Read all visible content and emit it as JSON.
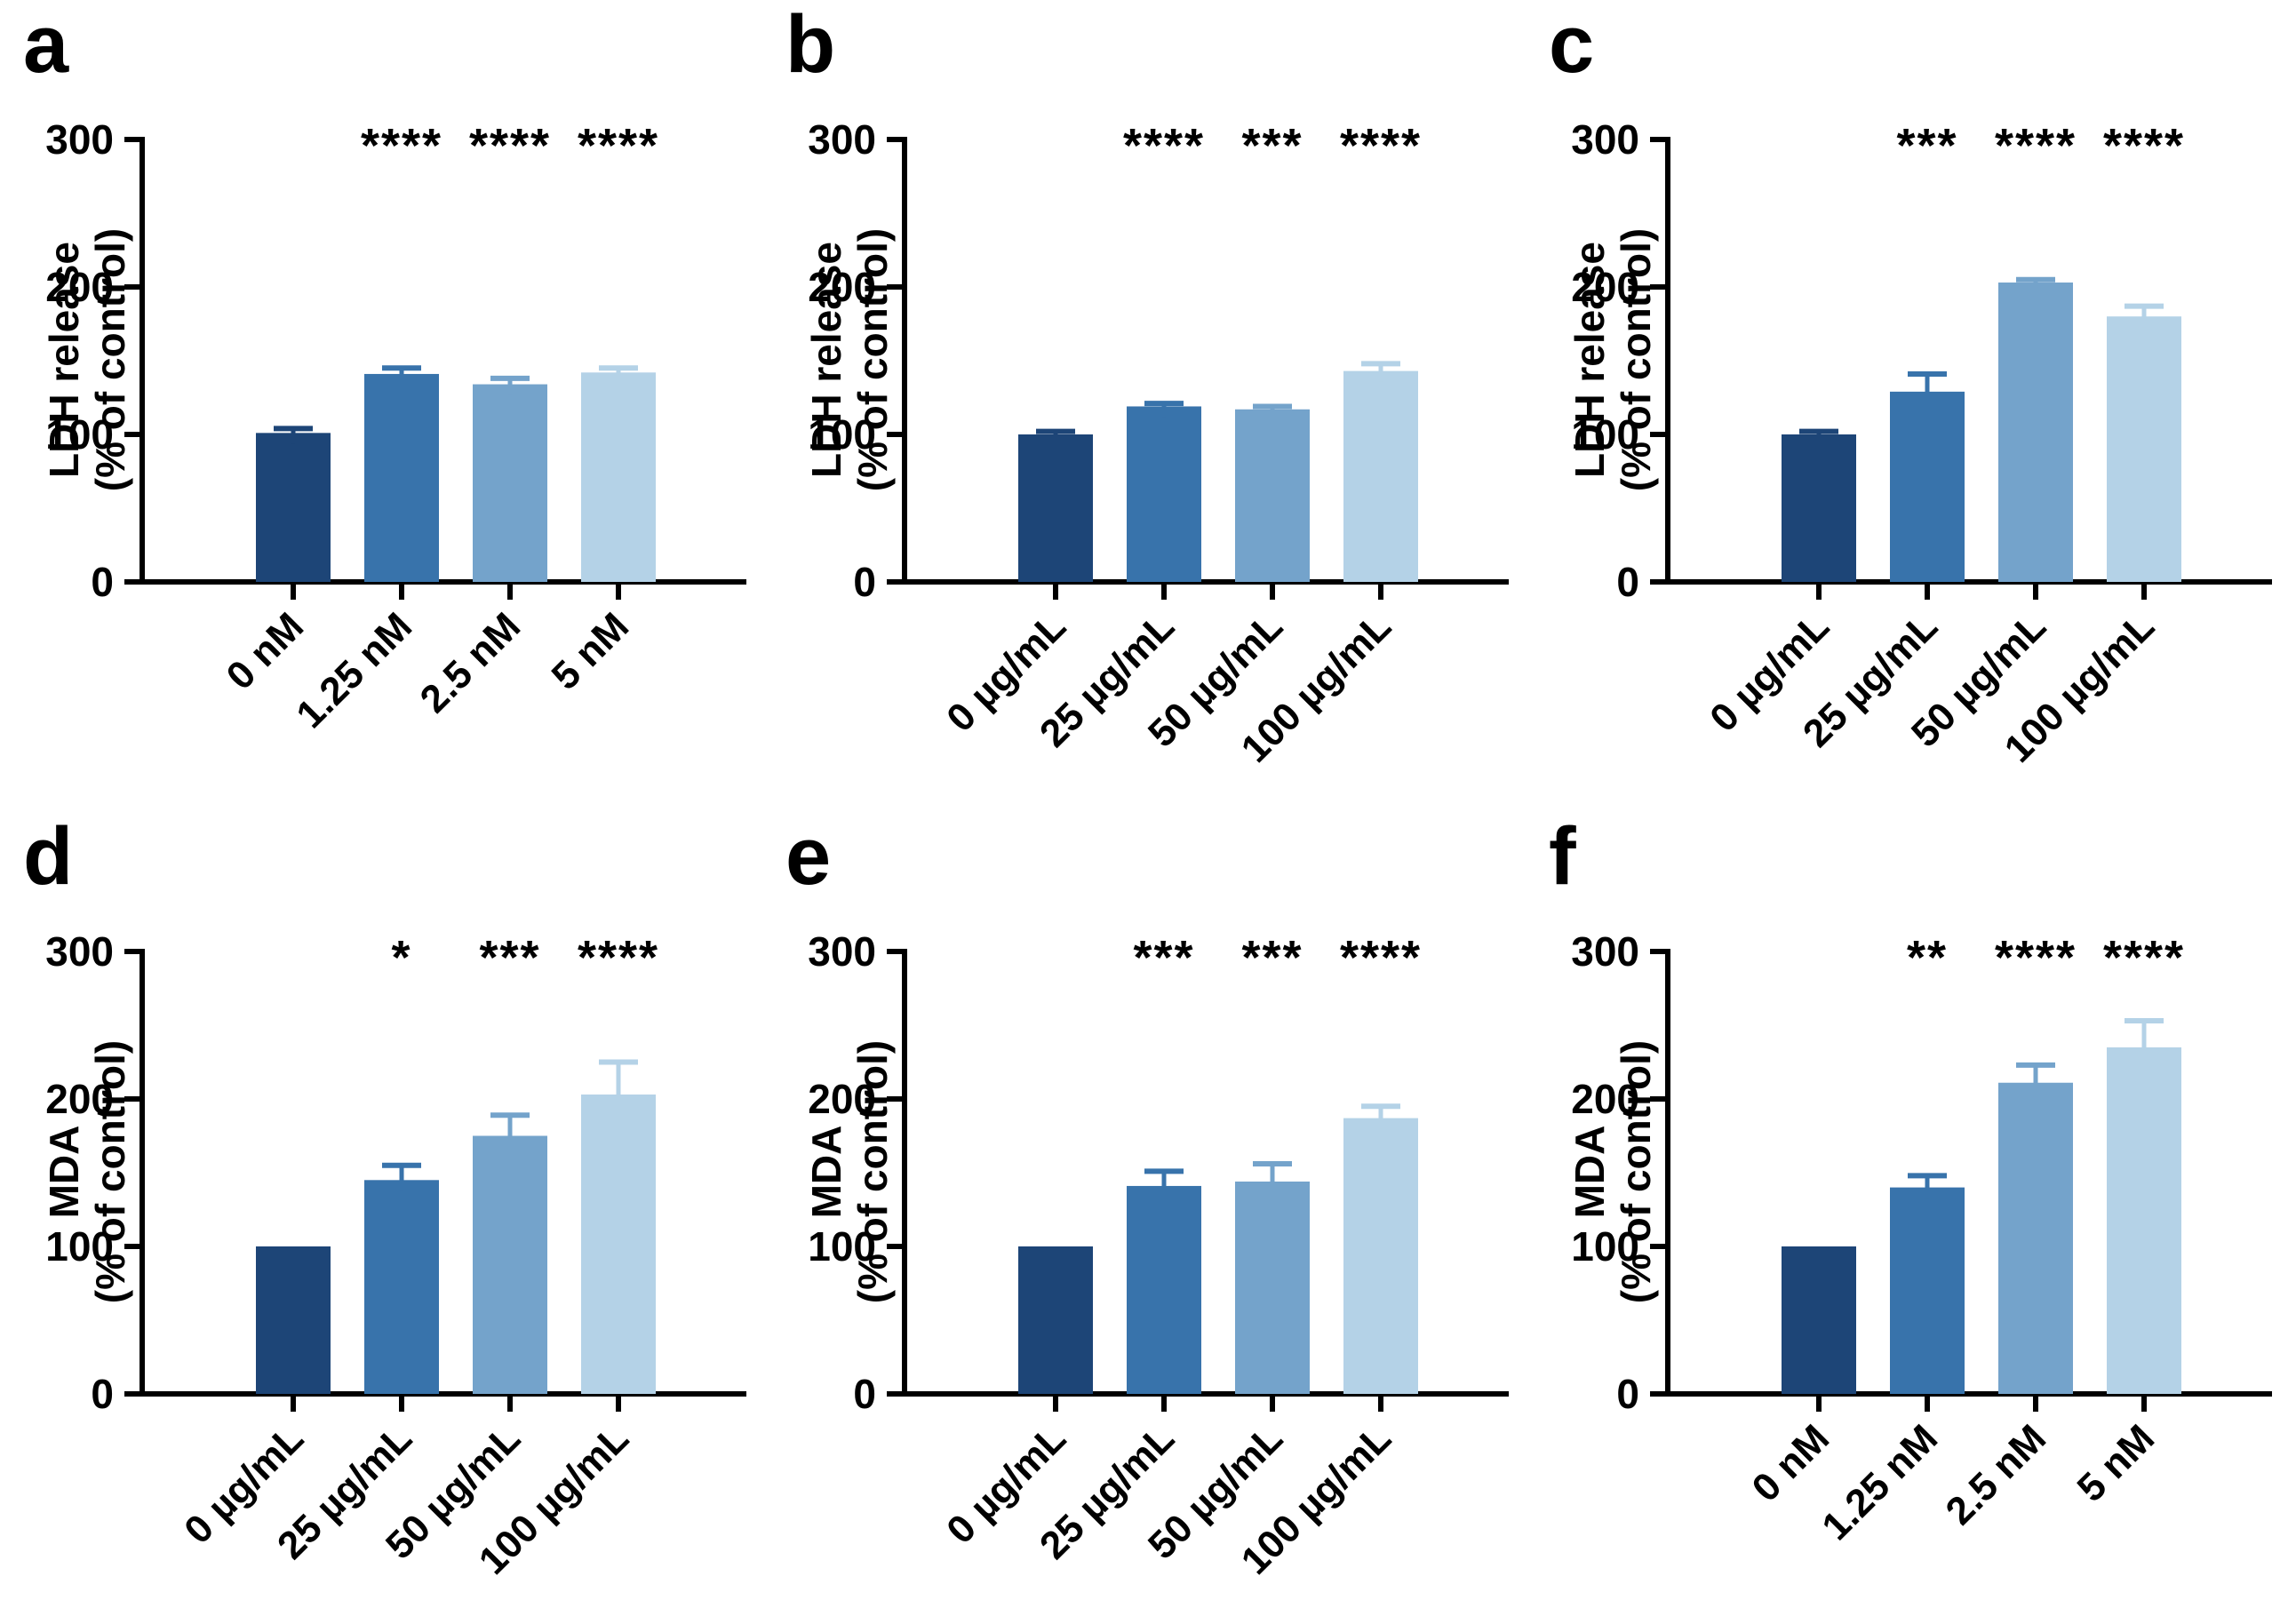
{
  "style": {
    "background": "#ffffff",
    "axis_color": "#000000",
    "bar_colors": [
      "#1d4577",
      "#3873ab",
      "#74a3cb",
      "#b4d2e7"
    ],
    "error_bar_color_rule": "same-as-bar",
    "significance_marker": "asterisks"
  },
  "chart_data": [
    {
      "type": "bar",
      "panel": "a",
      "ylabel_lines": [
        "LDH release",
        "(% of control)"
      ],
      "categories": [
        "0 nM",
        "1.25 nM",
        "2.5 nM",
        "5 nM"
      ],
      "values": [
        101,
        141,
        134,
        142
      ],
      "errors": [
        3,
        4,
        4,
        3
      ],
      "significance": [
        "",
        "****",
        "****",
        "****"
      ],
      "yticks": [
        0,
        100,
        200,
        300
      ],
      "ylim": [
        0,
        300
      ],
      "grid": false,
      "legend": "none"
    },
    {
      "type": "bar",
      "panel": "b",
      "ylabel_lines": [
        "LDH release",
        "(% of control)"
      ],
      "categories": [
        "0 µg/mL",
        "25 µg/mL",
        "50 µg/mL",
        "100 µg/mL"
      ],
      "values": [
        100,
        119,
        117,
        143
      ],
      "errors": [
        2,
        2,
        2,
        5
      ],
      "significance": [
        "",
        "****",
        "***",
        "****"
      ],
      "yticks": [
        0,
        100,
        200,
        300
      ],
      "ylim": [
        0,
        300
      ],
      "grid": false,
      "legend": "none"
    },
    {
      "type": "bar",
      "panel": "c",
      "ylabel_lines": [
        "LDH release",
        "(% of control)"
      ],
      "categories": [
        "0 µg/mL",
        "25 µg/mL",
        "50 µg/mL",
        "100 µg/mL"
      ],
      "values": [
        100,
        129,
        203,
        180
      ],
      "errors": [
        2,
        12,
        2,
        7
      ],
      "significance": [
        "",
        "***",
        "****",
        "****"
      ],
      "yticks": [
        0,
        100,
        200,
        300
      ],
      "ylim": [
        0,
        300
      ],
      "grid": false,
      "legend": "none"
    },
    {
      "type": "bar",
      "panel": "d",
      "ylabel_lines": [
        "MDA",
        "(% of control)"
      ],
      "categories": [
        "0 µg/mL",
        "25 µg/mL",
        "50 µg/mL",
        "100 µg/mL"
      ],
      "values": [
        100,
        145,
        175,
        203
      ],
      "errors": [
        0,
        10,
        14,
        22
      ],
      "significance": [
        "",
        "*",
        "***",
        "****"
      ],
      "yticks": [
        0,
        100,
        200,
        300
      ],
      "ylim": [
        0,
        300
      ],
      "grid": false,
      "legend": "none"
    },
    {
      "type": "bar",
      "panel": "e",
      "ylabel_lines": [
        "MDA",
        "(% of control)"
      ],
      "categories": [
        "0 µg/mL",
        "25 µg/mL",
        "50 µg/mL",
        "100 µg/mL"
      ],
      "values": [
        100,
        141,
        144,
        187
      ],
      "errors": [
        0,
        10,
        12,
        8
      ],
      "significance": [
        "",
        "***",
        "***",
        "****"
      ],
      "yticks": [
        0,
        100,
        200,
        300
      ],
      "ylim": [
        0,
        300
      ],
      "grid": false,
      "legend": "none"
    },
    {
      "type": "bar",
      "panel": "f",
      "ylabel_lines": [
        "MDA",
        "(% of control)"
      ],
      "categories": [
        "0 nM",
        "1.25 nM",
        "2.5 nM",
        "5 nM"
      ],
      "values": [
        100,
        140,
        211,
        235
      ],
      "errors": [
        0,
        8,
        12,
        18
      ],
      "significance": [
        "",
        "**",
        "****",
        "****"
      ],
      "yticks": [
        0,
        100,
        200,
        300
      ],
      "ylim": [
        0,
        300
      ],
      "grid": false,
      "legend": "none"
    }
  ]
}
